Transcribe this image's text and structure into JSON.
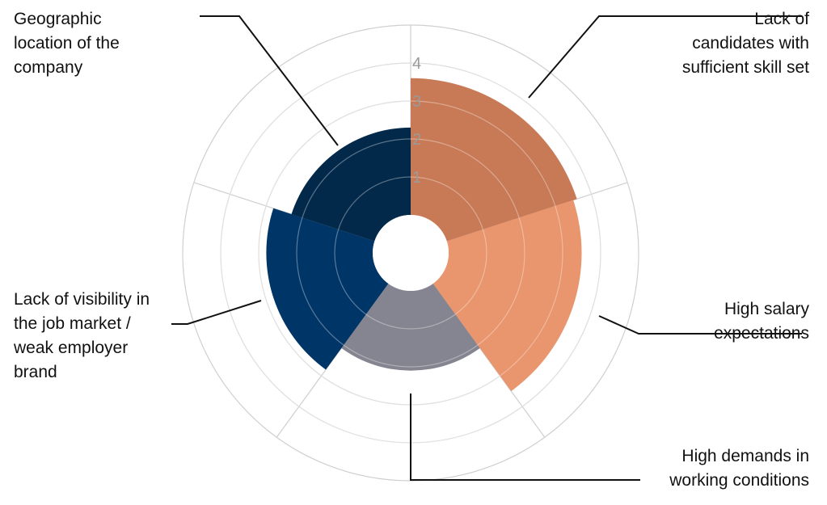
{
  "chart_data": {
    "type": "polar-area",
    "title": "",
    "categories": [
      "Lack of candidates with sufficient skill set",
      "High salary expectations",
      "High demands in working conditions",
      "Lack of visibility in the job market / weak employer brand",
      "Geographic location of the company"
    ],
    "category_lines": [
      [
        "Lack of",
        "candidates with",
        "sufficient skill set"
      ],
      [
        "High salary",
        "expectations"
      ],
      [
        "High demands in",
        "working conditions"
      ],
      [
        "Lack of visibility in",
        "the job market /",
        "weak employer",
        "brand"
      ],
      [
        "Geographic",
        "location of the",
        "company"
      ]
    ],
    "values": [
      3.6,
      3.5,
      2.1,
      2.8,
      2.3
    ],
    "colors": [
      "#C87A56",
      "#E9956D",
      "#848590",
      "#003567",
      "#02284A"
    ],
    "radial_ticks": [
      "1",
      "2",
      "3",
      "4"
    ],
    "rlim": [
      0,
      5
    ],
    "grid": true,
    "legend": "none"
  }
}
